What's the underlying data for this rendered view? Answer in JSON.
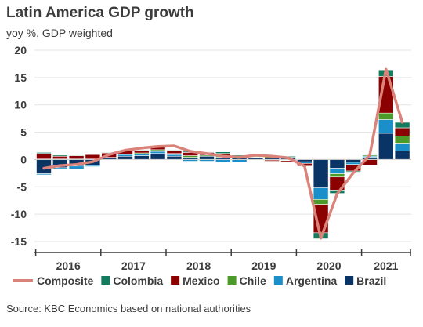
{
  "header": {
    "title": "Latin America GDP growth",
    "subtitle": "yoy %, GDP weighted"
  },
  "source": "Source: KBC Economics based on national authorities",
  "chart_data": {
    "type": "bar",
    "stacked": true,
    "title": "Latin America GDP growth",
    "ylabel": "yoy %, GDP weighted",
    "ylim": [
      -15,
      20
    ],
    "yticks": [
      -15,
      -10,
      -5,
      0,
      5,
      10,
      15,
      20
    ],
    "grid": true,
    "legend_placement": "bottom",
    "year_labels": [
      "2016",
      "2017",
      "2018",
      "2019",
      "2020",
      "2021"
    ],
    "quarters": [
      "2016Q1",
      "2016Q2",
      "2016Q3",
      "2016Q4",
      "2017Q1",
      "2017Q2",
      "2017Q3",
      "2017Q4",
      "2018Q1",
      "2018Q2",
      "2018Q3",
      "2018Q4",
      "2019Q1",
      "2019Q2",
      "2019Q3",
      "2019Q4",
      "2020Q1",
      "2020Q2",
      "2020Q3",
      "2020Q4",
      "2021Q1",
      "2021Q2",
      "2021Q3"
    ],
    "series": [
      {
        "name": "Brazil",
        "color": "#0a3366",
        "values": [
          -2.6,
          -1.5,
          -1.2,
          -1.1,
          0.3,
          0.6,
          0.7,
          1.1,
          0.6,
          0.4,
          0.6,
          0.4,
          0.3,
          0.4,
          0.3,
          0.4,
          -0.4,
          -5.2,
          -1.6,
          -0.5,
          0.4,
          4.8,
          1.6
        ]
      },
      {
        "name": "Argentina",
        "color": "#1a8fc9",
        "values": [
          -0.2,
          -0.3,
          -0.5,
          -0.2,
          0.1,
          0.3,
          0.3,
          0.4,
          0.3,
          -0.3,
          -0.3,
          -0.5,
          -0.5,
          0.0,
          -0.1,
          -0.1,
          -0.3,
          -2.1,
          -1.0,
          -0.4,
          0.2,
          2.5,
          1.4
        ]
      },
      {
        "name": "Chile",
        "color": "#4c9a2a",
        "values": [
          0.1,
          0.1,
          0.1,
          0.1,
          0.0,
          0.1,
          0.2,
          0.3,
          0.2,
          0.3,
          0.2,
          0.2,
          0.1,
          0.1,
          0.2,
          -0.1,
          0.0,
          -0.9,
          -0.6,
          0.0,
          0.2,
          1.2,
          1.3
        ]
      },
      {
        "name": "Mexico",
        "color": "#8b0000",
        "values": [
          1.0,
          0.5,
          0.6,
          0.8,
          0.8,
          0.6,
          0.5,
          0.5,
          0.6,
          0.6,
          0.5,
          0.5,
          0.2,
          0.0,
          -0.2,
          -0.2,
          -0.5,
          -5.2,
          -2.4,
          -1.2,
          -1.0,
          6.7,
          1.5
        ]
      },
      {
        "name": "Colombia",
        "color": "#137b5e",
        "values": [
          0.2,
          0.2,
          0.1,
          0.1,
          0.1,
          0.1,
          0.1,
          0.1,
          0.1,
          0.2,
          0.1,
          0.3,
          0.2,
          0.2,
          0.2,
          0.2,
          0.1,
          -1.1,
          -0.6,
          -0.2,
          0.1,
          1.2,
          1.0
        ]
      },
      {
        "name": "Composite",
        "type": "line",
        "color": "#d9837a",
        "values": [
          -1.6,
          -1.1,
          -0.9,
          -0.4,
          0.9,
          1.7,
          2.1,
          2.4,
          2.5,
          1.5,
          1.1,
          0.6,
          0.4,
          0.8,
          0.6,
          0.3,
          -1.2,
          -14.4,
          -6.3,
          -2.4,
          0.8,
          16.5,
          6.8
        ]
      }
    ],
    "legend": [
      "Composite",
      "Colombia",
      "Mexico",
      "Chile",
      "Argentina",
      "Brazil"
    ]
  }
}
